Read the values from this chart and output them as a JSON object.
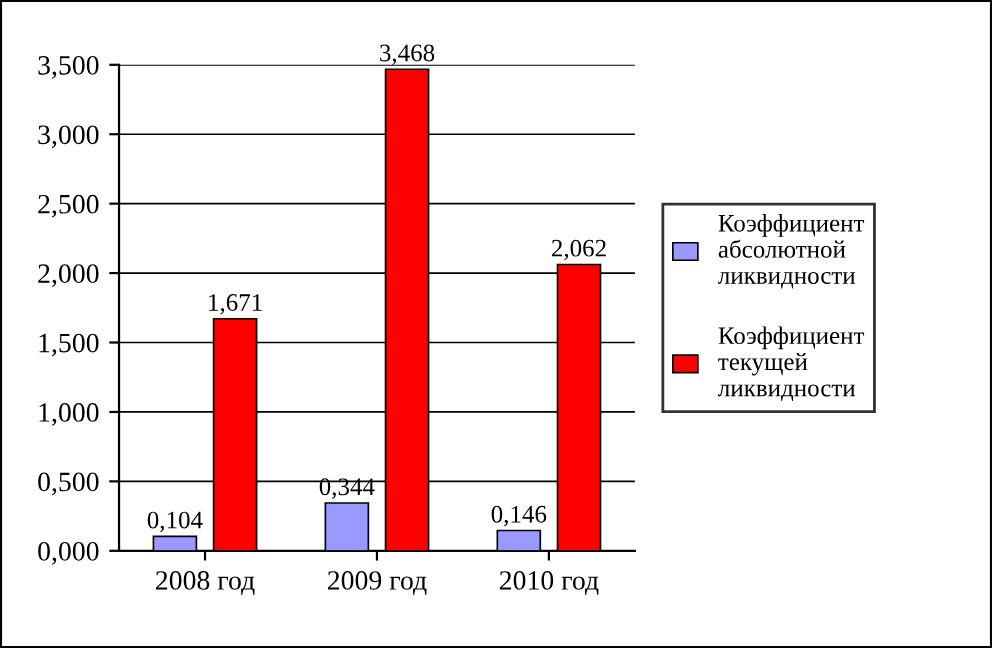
{
  "chart_data": {
    "type": "bar",
    "categories": [
      "2008 год",
      "2009 год",
      "2010 год"
    ],
    "series": [
      {
        "name": "Коэффициент абсолютной ликвидности",
        "color": "#9999ff",
        "values": [
          0.104,
          0.344,
          0.146
        ],
        "value_labels": [
          "0,104",
          "0,344",
          "0,146"
        ]
      },
      {
        "name": "Коэффициент текущей ликвидности",
        "color": "#ff0000",
        "values": [
          1.671,
          3.468,
          2.062
        ],
        "value_labels": [
          "1,671",
          "3,468",
          "2,062"
        ]
      }
    ],
    "ylim": [
      0,
      3.5
    ],
    "yticks": [
      {
        "value": 0,
        "label": "0,000"
      },
      {
        "value": 0.5,
        "label": "0,500"
      },
      {
        "value": 1,
        "label": "1,000"
      },
      {
        "value": 1.5,
        "label": "1,500"
      },
      {
        "value": 2,
        "label": "2,000"
      },
      {
        "value": 2.5,
        "label": "2,500"
      },
      {
        "value": 3,
        "label": "3,000"
      },
      {
        "value": 3.5,
        "label": "3,500"
      }
    ],
    "grid": "y",
    "legend": "right"
  }
}
